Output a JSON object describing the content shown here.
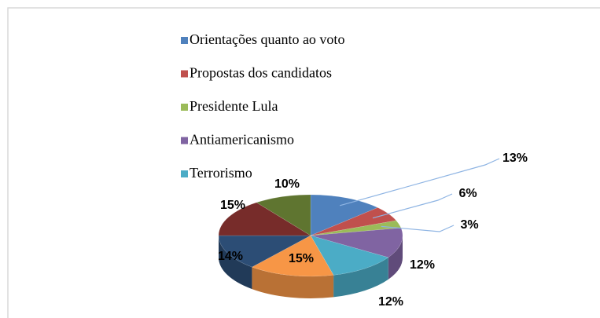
{
  "chart_data": {
    "type": "pie3d",
    "categories": [
      "Orientações quanto ao voto",
      "Propostas dos candidatos",
      "Presidente Lula",
      "Antiamericanismo",
      "Terrorismo",
      null,
      null,
      null,
      null
    ],
    "values": [
      13,
      6,
      3,
      12,
      12,
      15,
      14,
      15,
      10
    ],
    "value_labels": [
      "13%",
      "6%",
      "3%",
      "12%",
      "12%",
      "15%",
      "14%",
      "15%",
      "10%"
    ],
    "colors": [
      "#4f81bd",
      "#c0504d",
      "#9bbb59",
      "#8064a2",
      "#4bacc6",
      "#f79646",
      "#2c4d75",
      "#772c2a",
      "#5f7530"
    ],
    "legend": "top"
  }
}
